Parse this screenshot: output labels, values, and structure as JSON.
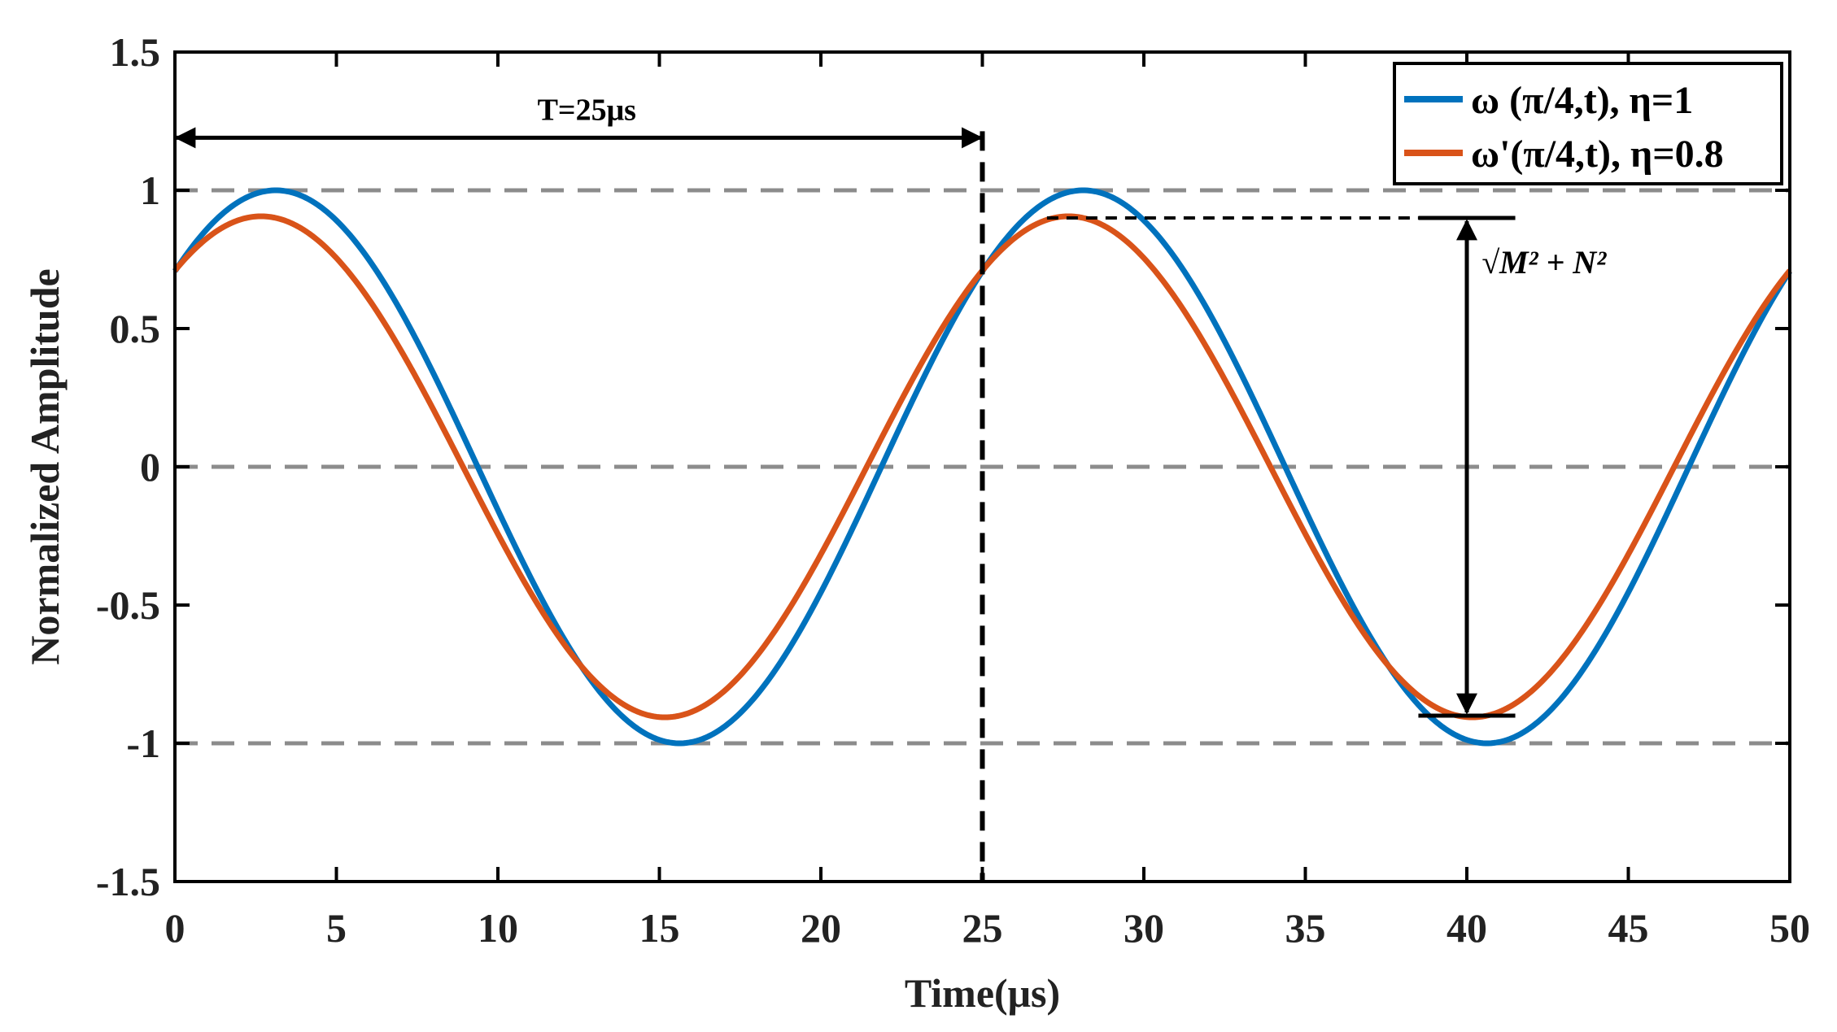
{
  "chart_data": {
    "type": "line",
    "xlabel": "Time(μs)",
    "ylabel": "Normalized Amplitude",
    "xlim": [
      0,
      50
    ],
    "ylim": [
      -1.5,
      1.5
    ],
    "xticks": [
      0,
      5,
      10,
      15,
      20,
      25,
      30,
      35,
      40,
      45,
      50
    ],
    "yticks": [
      -1.5,
      -1,
      -0.5,
      0,
      0.5,
      1,
      1.5
    ],
    "ytick_labels": [
      "-1.5",
      "-1",
      "-0.5",
      "0",
      "0.5",
      "1",
      "1.5"
    ],
    "grid_lines_y": [
      1,
      0,
      -1
    ],
    "legend_position": "top-right",
    "series": [
      {
        "name": "ω (π/4,t), η=1",
        "color": "#0072BD",
        "function": "cos",
        "amplitude": 1.0,
        "period": 25,
        "peak_time": 3.125,
        "x_start": 0,
        "x_end": 50
      },
      {
        "name": "ω'(π/4,t), η=0.8",
        "color": "#D95319",
        "function": "cos",
        "amplitude": 0.906,
        "period": 25,
        "peak_time": 2.67,
        "x_start": 0,
        "x_end": 50
      }
    ],
    "annotations": {
      "period_label": "T=25μs",
      "period_start": 0,
      "period_end": 25,
      "period_arrow_y": 1.19,
      "magnitude_label": "√M² + N²",
      "magnitude_x": 40,
      "magnitude_top": 0.9,
      "magnitude_bottom": -0.9,
      "magnitude_dash_from": 27,
      "magnitude_cap_half_width": 1.5
    }
  }
}
